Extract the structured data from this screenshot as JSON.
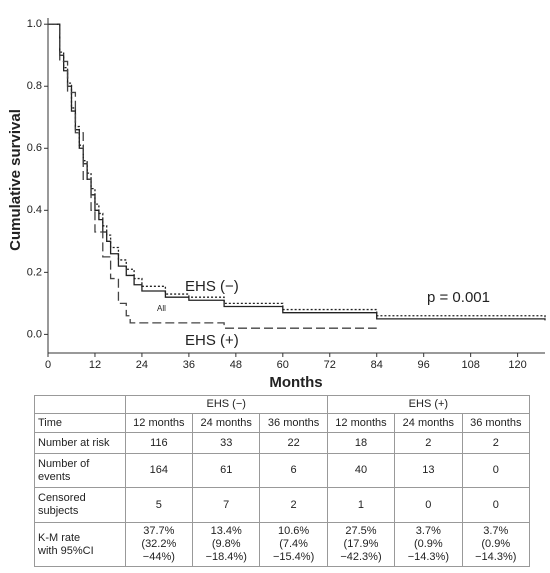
{
  "chart_data": {
    "type": "step",
    "ylabel": "Cumulative survival",
    "xlabel": "Months",
    "xlim": [
      0,
      127
    ],
    "ylim": [
      -0.06,
      1.02
    ],
    "xticks": [
      0,
      12,
      24,
      36,
      48,
      60,
      72,
      84,
      96,
      108,
      120
    ],
    "yticks": [
      {
        "value": 0,
        "label": "0.0"
      },
      {
        "value": 0.2,
        "label": "0.2"
      },
      {
        "value": 0.4,
        "label": "0.4"
      },
      {
        "value": 0.6,
        "label": "0.6"
      },
      {
        "value": 0.8,
        "label": "0.8"
      },
      {
        "value": 1,
        "label": "1.0"
      }
    ],
    "annotation": "p = 0.001",
    "series": [
      {
        "name": "EHS (−)",
        "color": "#222222",
        "dash": "2,2",
        "x": [
          0,
          2,
          3,
          4,
          5,
          6,
          7,
          8,
          9,
          10,
          11,
          12,
          13,
          14,
          15,
          16,
          18,
          20,
          22,
          24,
          30,
          36,
          45,
          60,
          84,
          127
        ],
        "values": [
          1,
          1,
          0.91,
          0.86,
          0.81,
          0.73,
          0.67,
          0.61,
          0.56,
          0.52,
          0.47,
          0.42,
          0.39,
          0.35,
          0.32,
          0.28,
          0.24,
          0.21,
          0.18,
          0.155,
          0.13,
          0.12,
          0.1,
          0.08,
          0.06,
          0.055
        ]
      },
      {
        "name": "All",
        "color": "#222222",
        "dash": "",
        "x": [
          0,
          2,
          3,
          4,
          5,
          6,
          7,
          8,
          9,
          10,
          11,
          12,
          13,
          14,
          15,
          16,
          18,
          20,
          22,
          24,
          30,
          36,
          45,
          60,
          84,
          127
        ],
        "values": [
          1,
          1,
          0.9,
          0.85,
          0.8,
          0.72,
          0.66,
          0.6,
          0.55,
          0.5,
          0.45,
          0.4,
          0.37,
          0.33,
          0.3,
          0.26,
          0.22,
          0.19,
          0.16,
          0.14,
          0.12,
          0.11,
          0.09,
          0.07,
          0.05,
          0.045
        ]
      },
      {
        "name": "EHS (+)",
        "color": "#444444",
        "dash": "9,4",
        "x": [
          0,
          2,
          3,
          5,
          7,
          9,
          11,
          12,
          14,
          16,
          18,
          20,
          21,
          45,
          84
        ],
        "values": [
          1,
          1,
          0.88,
          0.78,
          0.65,
          0.5,
          0.4,
          0.33,
          0.25,
          0.18,
          0.1,
          0.06,
          0.037,
          0.02,
          0.02
        ]
      }
    ]
  },
  "table": {
    "groups": [
      "EHS (−)",
      "EHS (+)"
    ],
    "rows": [
      [
        "Time",
        "12 months",
        "24 months",
        "36 months",
        "12 months",
        "24 months",
        "36 months"
      ],
      [
        "Number at risk",
        "116",
        "33",
        "22",
        "18",
        "2",
        "2"
      ],
      [
        "Number of\nevents",
        "164",
        "61",
        "6",
        "40",
        "13",
        "0"
      ],
      [
        "Censored\nsubjects",
        "5",
        "7",
        "2",
        "1",
        "0",
        "0"
      ],
      [
        "K-M rate\nwith 95%CI",
        "37.7%\n(32.2%\n−44%)",
        "13.4%\n(9.8%\n−18.4%)",
        "10.6%\n(7.4%\n−15.4%)",
        "27.5%\n(17.9%\n−42.3%)",
        "3.7%\n(0.9%\n−14.3%)",
        "3.7%\n(0.9%\n−14.3%)"
      ]
    ]
  }
}
